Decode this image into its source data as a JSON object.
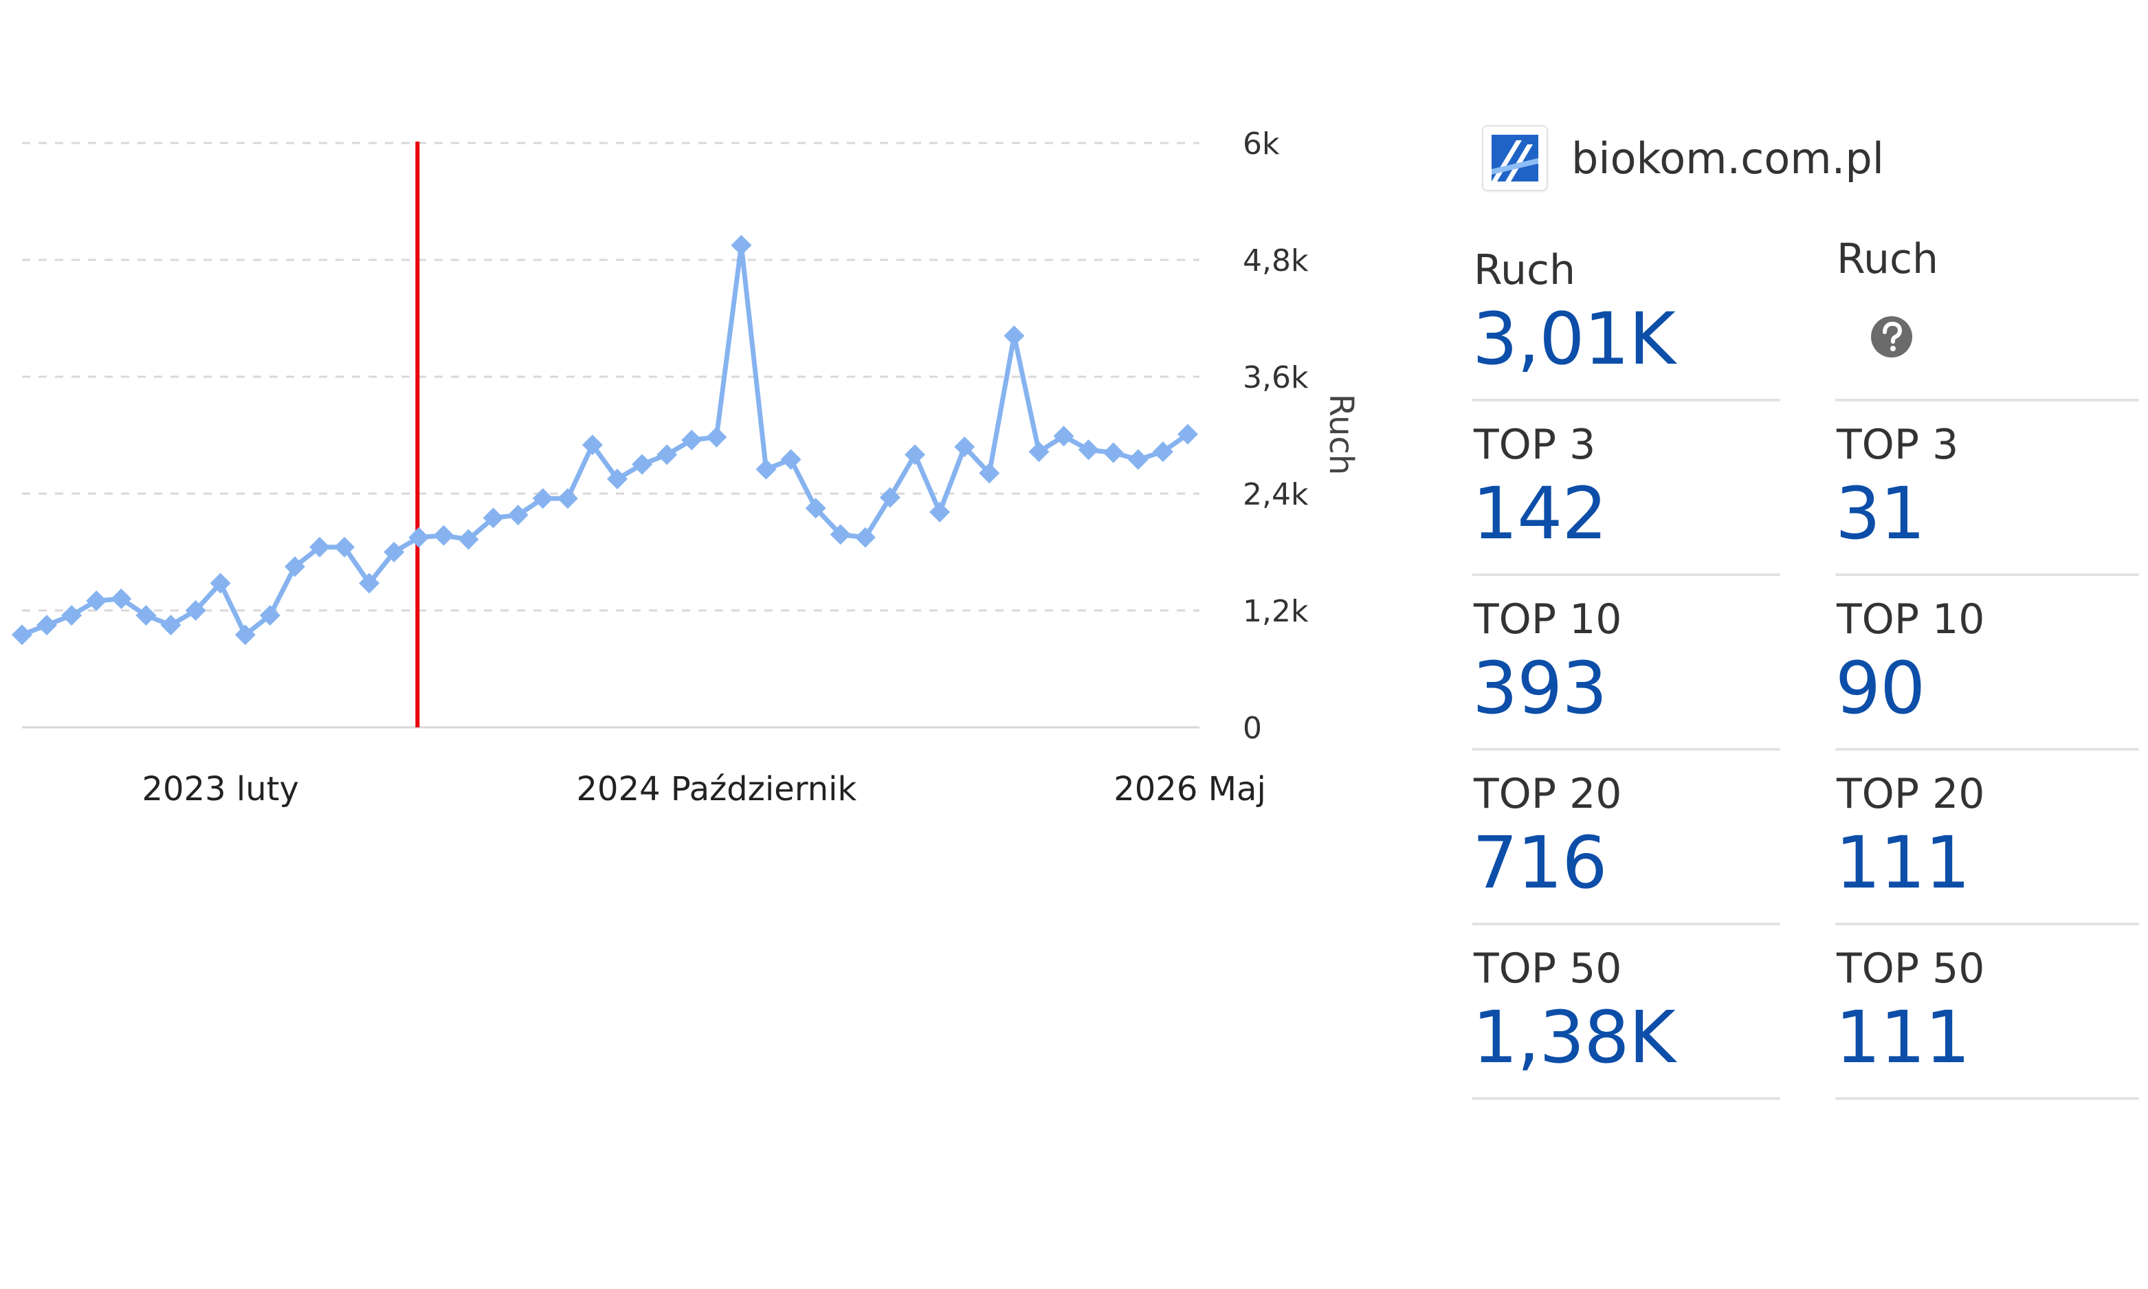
{
  "chart_data": {
    "type": "line",
    "ylabel": "Ruch",
    "y_ticks": [
      "0",
      "1,2k",
      "2,4k",
      "3,6k",
      "4,8k",
      "6k"
    ],
    "ylim": [
      0,
      6000
    ],
    "x_labels": [
      {
        "label": "2023 luty",
        "index": 8
      },
      {
        "label": "2024 Październik",
        "index": 28
      },
      {
        "label": "2026 Maj",
        "index": 47
      }
    ],
    "marker_line_index": 16,
    "grid": true,
    "series": [
      {
        "values": [
          950,
          1050,
          1150,
          1300,
          1320,
          1150,
          1050,
          1200,
          1480,
          950,
          1150,
          1650,
          1850,
          1850,
          1480,
          1800,
          1950,
          1970,
          1930,
          2150,
          2180,
          2350,
          2350,
          2900,
          2550,
          2700,
          2800,
          2950,
          2980,
          4950,
          2650,
          2750,
          2250,
          1980,
          1950,
          2360,
          2800,
          2210,
          2880,
          2610,
          4020,
          2830,
          2990,
          2850,
          2820,
          2750,
          2830,
          3010
        ]
      }
    ]
  },
  "colors": {
    "line": "#86b3f0",
    "marker_line": "#e8000d",
    "grid": "#d8d8d8",
    "value": "#0c4ea8"
  },
  "site": {
    "name": "biokom.com.pl",
    "logo_icon": "biokom-logo-icon"
  },
  "metrics": {
    "left": [
      {
        "label": "Ruch",
        "value": "3,01K"
      },
      {
        "label": "TOP 3",
        "value": "142"
      },
      {
        "label": "TOP 10",
        "value": "393"
      },
      {
        "label": "TOP 20",
        "value": "716"
      },
      {
        "label": "TOP 50",
        "value": "1,38K"
      }
    ],
    "right": [
      {
        "label": "Ruch",
        "icon": "help-icon"
      },
      {
        "label": "TOP 3",
        "value": "31"
      },
      {
        "label": "TOP 10",
        "value": "90"
      },
      {
        "label": "TOP 20",
        "value": "111"
      },
      {
        "label": "TOP 50",
        "value": "111"
      }
    ]
  }
}
